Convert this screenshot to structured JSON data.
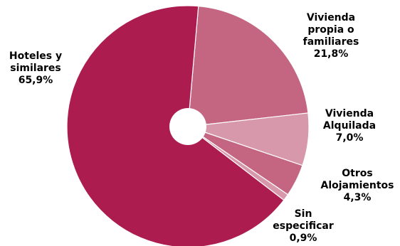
{
  "chart_data": {
    "type": "pie",
    "title": "",
    "slices": [
      {
        "name": "Hoteles y similares",
        "label_lines": [
          "Hoteles y",
          "similares",
          "65,9%"
        ],
        "value": 65.9,
        "value_label": "65,9%",
        "color": "#ac1c4f"
      },
      {
        "name": "Vivienda propia o familiares",
        "label_lines": [
          "Vivienda",
          "propia o",
          "familiares",
          "21,8%"
        ],
        "value": 21.8,
        "value_label": "21,8%",
        "color": "#c46582"
      },
      {
        "name": "Vivienda Alquilada",
        "label_lines": [
          "Vivienda",
          "Alquilada",
          "7,0%"
        ],
        "value": 7.0,
        "value_label": "7,0%",
        "color": "#d698aa"
      },
      {
        "name": "Otros Alojamientos",
        "label_lines": [
          "Otros",
          "Alojamientos",
          "4,3%"
        ],
        "value": 4.3,
        "value_label": "4,3%",
        "color": "#c46582"
      },
      {
        "name": "Sin especificar",
        "label_lines": [
          "Sin",
          "especificar",
          "0,9%"
        ],
        "value": 0.9,
        "value_label": "0,9%",
        "color": "#d698aa"
      }
    ],
    "start_slice": "Vivienda propia o familiares",
    "direction": "clockwise",
    "donut_hole": true,
    "legend": "none",
    "data_labels": "outside"
  }
}
